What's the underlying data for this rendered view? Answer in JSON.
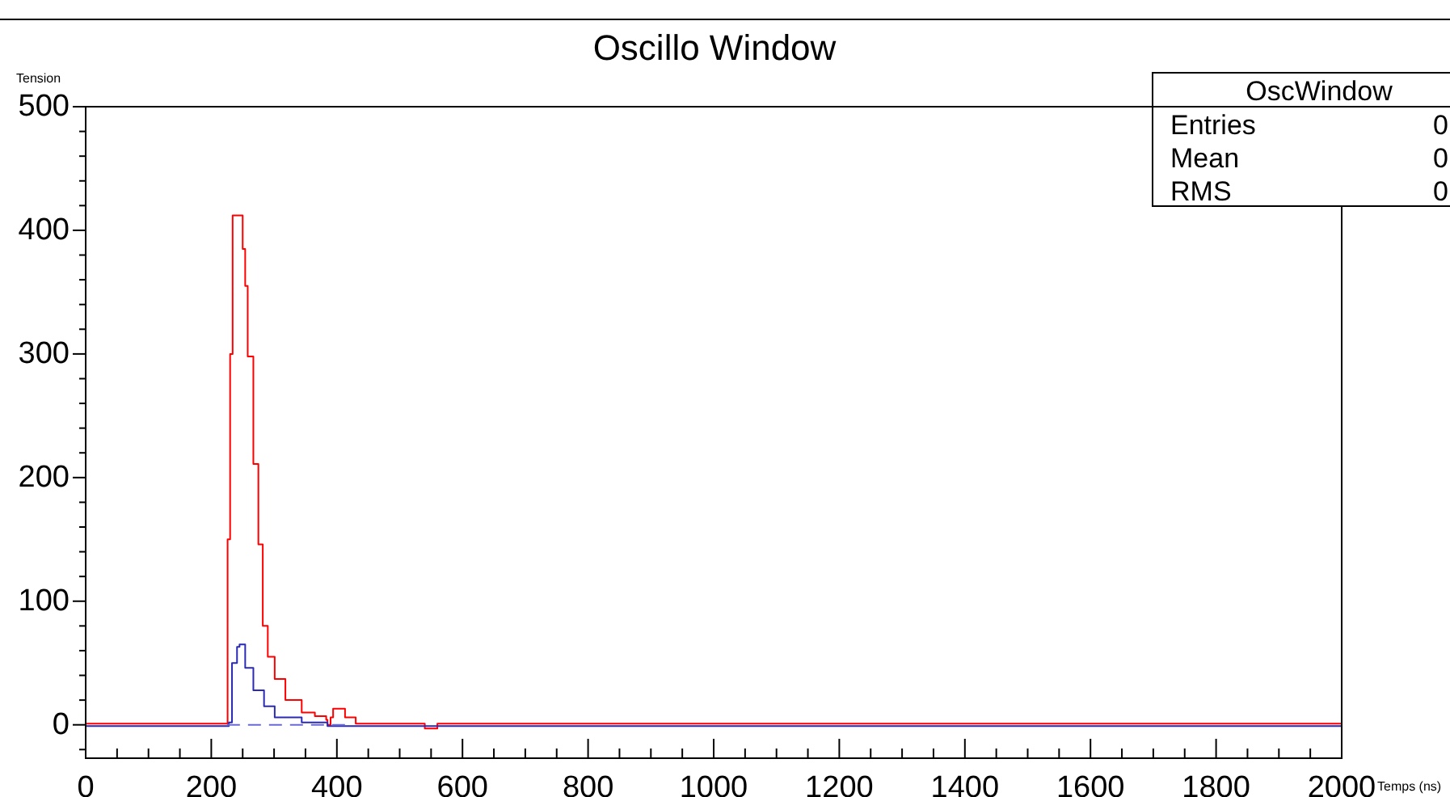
{
  "chart_data": {
    "type": "step",
    "title": "Oscillo Window",
    "xlabel": "Temps (ns)",
    "ylabel": "Tension",
    "annotations": [
      "OscWindow",
      "Entries",
      "0",
      "Mean",
      "0",
      "RMS",
      "0"
    ],
    "xlim": [
      0,
      2000
    ],
    "ylim": [
      -27,
      500
    ],
    "xticks": [
      0,
      {
        "value": 50,
        "label": null
      },
      {
        "value": 100,
        "label": null
      },
      {
        "value": 150,
        "label": null
      },
      200,
      {
        "value": 250,
        "label": null
      },
      {
        "value": 300,
        "label": null
      },
      {
        "value": 350,
        "label": null
      },
      400,
      {
        "value": 450,
        "label": null
      },
      {
        "value": 500,
        "label": null
      },
      {
        "value": 550,
        "label": null
      },
      600,
      {
        "value": 650,
        "label": null
      },
      {
        "value": 700,
        "label": null
      },
      {
        "value": 750,
        "label": null
      },
      800,
      {
        "value": 850,
        "label": null
      },
      {
        "value": 900,
        "label": null
      },
      {
        "value": 950,
        "label": null
      },
      1000,
      {
        "value": 1050,
        "label": null
      },
      {
        "value": 1100,
        "label": null
      },
      {
        "value": 1150,
        "label": null
      },
      1200,
      {
        "value": 1250,
        "label": null
      },
      {
        "value": 1300,
        "label": null
      },
      {
        "value": 1350,
        "label": null
      },
      1400,
      {
        "value": 1450,
        "label": null
      },
      {
        "value": 1500,
        "label": null
      },
      {
        "value": 1550,
        "label": null
      },
      1600,
      {
        "value": 1650,
        "label": null
      },
      {
        "value": 1700,
        "label": null
      },
      {
        "value": 1750,
        "label": null
      },
      1800,
      {
        "value": 1850,
        "label": null
      },
      {
        "value": 1900,
        "label": null
      },
      {
        "value": 1950,
        "label": null
      },
      2000
    ],
    "yticks": [
      {
        "value": -20,
        "label": null
      },
      0,
      {
        "value": 20,
        "label": null
      },
      {
        "value": 40,
        "label": null
      },
      {
        "value": 60,
        "label": null
      },
      {
        "value": 80,
        "label": null
      },
      100,
      {
        "value": 120,
        "label": null
      },
      {
        "value": 140,
        "label": null
      },
      {
        "value": 160,
        "label": null
      },
      {
        "value": 180,
        "label": null
      },
      200,
      {
        "value": 220,
        "label": null
      },
      {
        "value": 240,
        "label": null
      },
      {
        "value": 260,
        "label": null
      },
      {
        "value": 280,
        "label": null
      },
      300,
      {
        "value": 320,
        "label": null
      },
      {
        "value": 340,
        "label": null
      },
      {
        "value": 360,
        "label": null
      },
      {
        "value": 380,
        "label": null
      },
      400,
      {
        "value": 420,
        "label": null
      },
      {
        "value": 440,
        "label": null
      },
      {
        "value": 460,
        "label": null
      },
      {
        "value": 480,
        "label": null
      },
      500
    ],
    "grid": false,
    "marker": "none",
    "series": [
      {
        "color": "#ff0000",
        "x": [
          0,
          100,
          200,
          224,
          226,
          230,
          234,
          245,
          250,
          254,
          258,
          267,
          275,
          282,
          290,
          301,
          318,
          344,
          365,
          383,
          385,
          390,
          394,
          413,
          430,
          460,
          500,
          540,
          560,
          600,
          800,
          1000,
          1200,
          1400,
          1600,
          1800,
          2000
        ],
        "values": [
          1,
          1,
          1,
          1,
          150,
          300,
          412,
          412,
          385,
          355,
          298,
          211,
          146,
          80,
          55,
          37,
          20,
          10,
          7,
          4,
          0,
          6,
          13,
          6,
          1,
          1,
          1,
          -3,
          1,
          1,
          1,
          1,
          1,
          1,
          1,
          1,
          1
        ]
      },
      {
        "color": "#2a2ab4",
        "x": [
          0,
          100,
          200,
          226,
          228,
          233,
          241,
          245,
          254,
          267,
          284,
          301,
          344,
          385,
          400,
          600,
          800,
          1000,
          1200,
          1400,
          1600,
          1800,
          2000
        ],
        "values": [
          -1,
          -1,
          -1,
          -1,
          2,
          50,
          63,
          65,
          46,
          28,
          15,
          6,
          2,
          -1,
          -1,
          -1,
          -1,
          -1,
          -1,
          -1,
          -1,
          -1,
          -1
        ]
      },
      {
        "type": "line",
        "line_style": "dashed",
        "color": "#6a6ad6",
        "x": [
          225,
          420
        ],
        "values": [
          0,
          0
        ]
      }
    ]
  }
}
